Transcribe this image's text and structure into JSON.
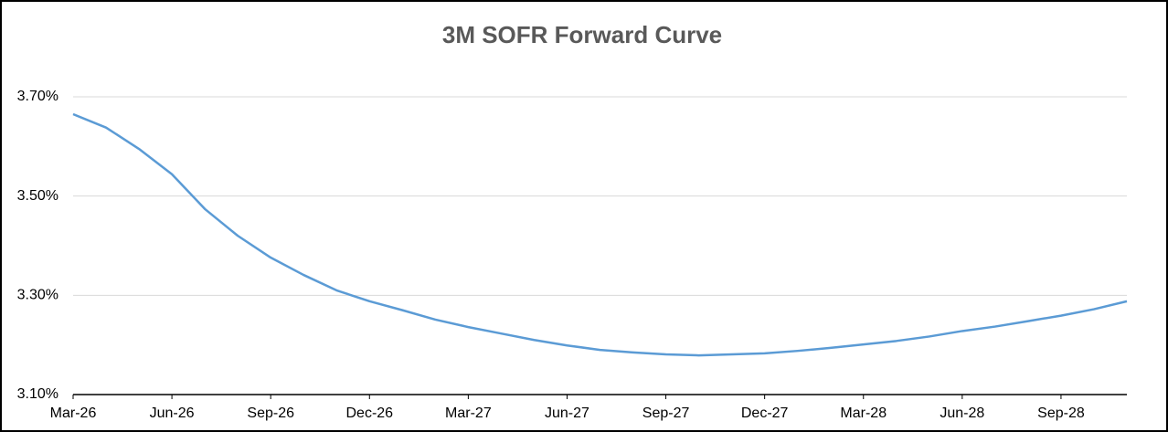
{
  "chart_data": {
    "type": "line",
    "title": "3M SOFR Forward Curve",
    "categories": [
      "Mar-26",
      null,
      null,
      "Jun-26",
      null,
      null,
      "Sep-26",
      null,
      null,
      "Dec-26",
      null,
      null,
      "Mar-27",
      null,
      null,
      "Jun-27",
      null,
      null,
      "Sep-27",
      null,
      null,
      "Dec-27",
      null,
      null,
      "Mar-28",
      null,
      null,
      "Jun-28",
      null,
      null,
      "Sep-28",
      null,
      null
    ],
    "series": [
      {
        "name": "3M SOFR",
        "color": "#5b9bd5",
        "values": [
          3.665,
          3.638,
          3.595,
          3.544,
          3.474,
          3.42,
          3.376,
          3.341,
          3.31,
          3.288,
          3.27,
          3.251,
          3.236,
          3.223,
          3.21,
          3.199,
          3.19,
          3.185,
          3.181,
          3.179,
          3.181,
          3.183,
          3.188,
          3.194,
          3.201,
          3.208,
          3.217,
          3.228,
          3.237,
          3.248,
          3.259,
          3.272,
          3.288
        ]
      }
    ],
    "ylim": [
      3.1,
      3.8
    ],
    "yticks": [
      {
        "value": 3.1,
        "label": "3.10%"
      },
      {
        "value": 3.3,
        "label": "3.30%"
      },
      {
        "value": 3.5,
        "label": "3.50%"
      },
      {
        "value": 3.7,
        "label": "3.70%"
      }
    ],
    "grid": true
  }
}
